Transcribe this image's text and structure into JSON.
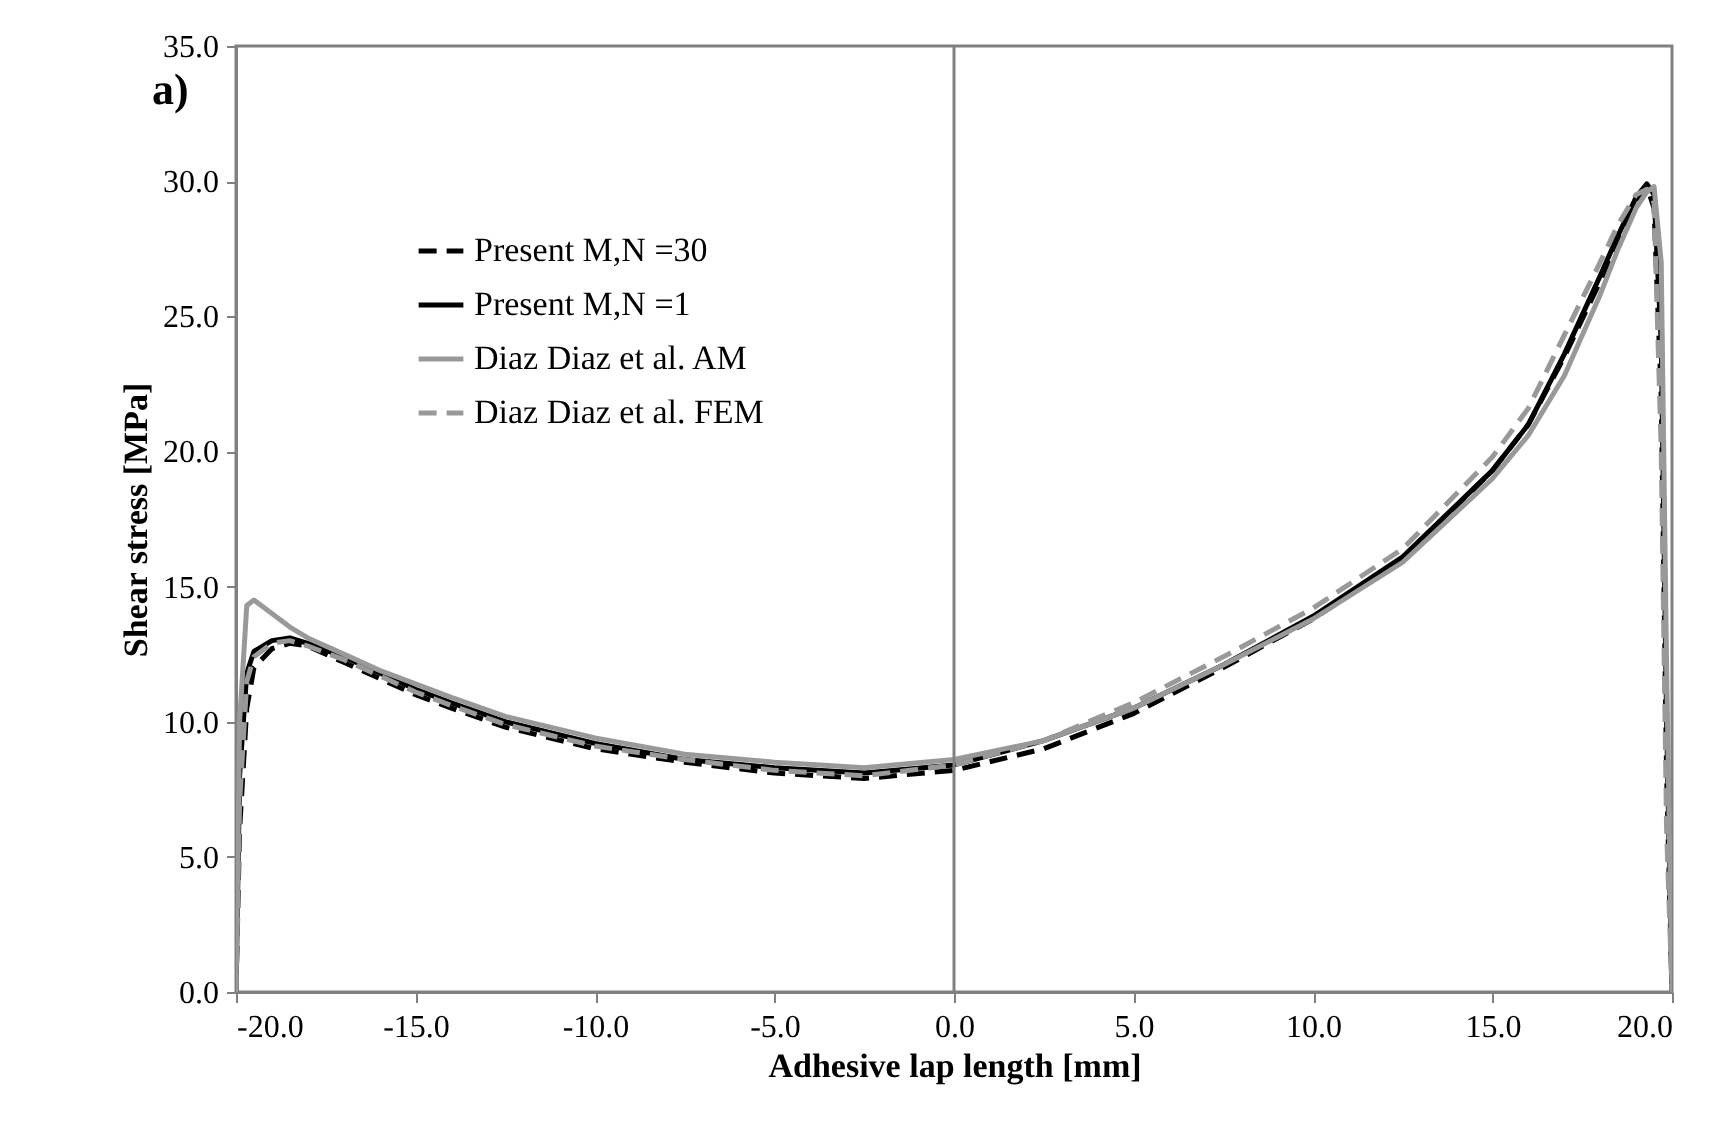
{
  "chart_data": {
    "type": "line",
    "xlabel": "Adhesive lap length [mm]",
    "ylabel": "Shear stress [MPa]",
    "annotations": [
      "a)"
    ],
    "x": [
      -20,
      -19.9,
      -19.7,
      -19.5,
      -19,
      -18.5,
      -18,
      -17,
      -16,
      -15,
      -14,
      -12.5,
      -10,
      -7.5,
      -5,
      -2.5,
      0,
      2.5,
      5,
      7.5,
      10,
      12.5,
      15,
      16,
      17,
      18,
      18.5,
      19,
      19.3,
      19.5,
      19.7,
      19.85,
      20
    ],
    "series": [
      {
        "name": "Present M,N =30",
        "color": "#000000",
        "line_style": "dashed",
        "values": [
          0,
          6,
          10.5,
          12.0,
          12.7,
          12.9,
          12.8,
          12.2,
          11.6,
          11.0,
          10.5,
          9.8,
          9.0,
          8.5,
          8.1,
          7.9,
          8.2,
          9.0,
          10.3,
          12.0,
          13.8,
          16.0,
          19.3,
          21.0,
          23.5,
          26.3,
          27.8,
          29.3,
          29.8,
          29.0,
          22,
          8,
          0
        ]
      },
      {
        "name": "Present M,N =1",
        "color": "#000000",
        "line_style": "solid",
        "values": [
          0,
          8,
          11.8,
          12.6,
          13.0,
          13.1,
          12.9,
          12.4,
          11.8,
          11.2,
          10.7,
          10.0,
          9.2,
          8.6,
          8.3,
          8.1,
          8.4,
          9.3,
          10.5,
          12.1,
          13.9,
          16.1,
          19.3,
          21.0,
          23.6,
          26.5,
          28.0,
          29.4,
          29.9,
          29.5,
          24,
          10,
          0
        ]
      },
      {
        "name": "Diaz Diaz et al. AM",
        "color": "#999999",
        "line_style": "solid",
        "values": [
          0,
          10,
          14.3,
          14.5,
          14.0,
          13.5,
          13.1,
          12.5,
          11.9,
          11.4,
          10.9,
          10.2,
          9.4,
          8.8,
          8.5,
          8.3,
          8.6,
          9.3,
          10.5,
          12.1,
          13.8,
          15.9,
          19.0,
          20.6,
          22.8,
          25.8,
          27.5,
          29.0,
          29.6,
          29.8,
          27,
          12,
          0
        ]
      },
      {
        "name": "Diaz Diaz et al. FEM",
        "color": "#999999",
        "line_style": "dashed",
        "values": [
          0,
          7,
          11.5,
          12.4,
          12.9,
          13.0,
          12.8,
          12.3,
          11.7,
          11.1,
          10.6,
          9.9,
          9.1,
          8.6,
          8.2,
          8.0,
          8.4,
          9.3,
          10.7,
          12.4,
          14.2,
          16.4,
          19.8,
          21.6,
          24.3,
          27.0,
          28.4,
          29.5,
          29.7,
          29.2,
          20,
          6,
          0
        ]
      }
    ],
    "xlim": [
      -20,
      20
    ],
    "xticks": [
      {
        "value": -20,
        "label": "-20.0"
      },
      {
        "value": -15,
        "label": "-15.0"
      },
      {
        "value": -10,
        "label": "-10.0"
      },
      {
        "value": -5,
        "label": "-5.0"
      },
      {
        "value": 0,
        "label": "0.0"
      },
      {
        "value": 5,
        "label": "5.0"
      },
      {
        "value": 10,
        "label": "10.0"
      },
      {
        "value": 15,
        "label": "15.0"
      },
      {
        "value": 20,
        "label": "20.0"
      }
    ],
    "ylim": [
      0,
      35
    ],
    "yticks": [
      {
        "value": 0,
        "label": "0.0"
      },
      {
        "value": 5,
        "label": "5.0"
      },
      {
        "value": 10,
        "label": "10.0"
      },
      {
        "value": 15,
        "label": "15.0"
      },
      {
        "value": 20,
        "label": "20.0"
      },
      {
        "value": 25,
        "label": "25.0"
      },
      {
        "value": 30,
        "label": "30.0"
      },
      {
        "value": 35,
        "label": "35.0"
      }
    ],
    "ref_lines": [
      {
        "axis": "x",
        "value": 0,
        "color": "#808080"
      }
    ],
    "legend": "top left"
  }
}
